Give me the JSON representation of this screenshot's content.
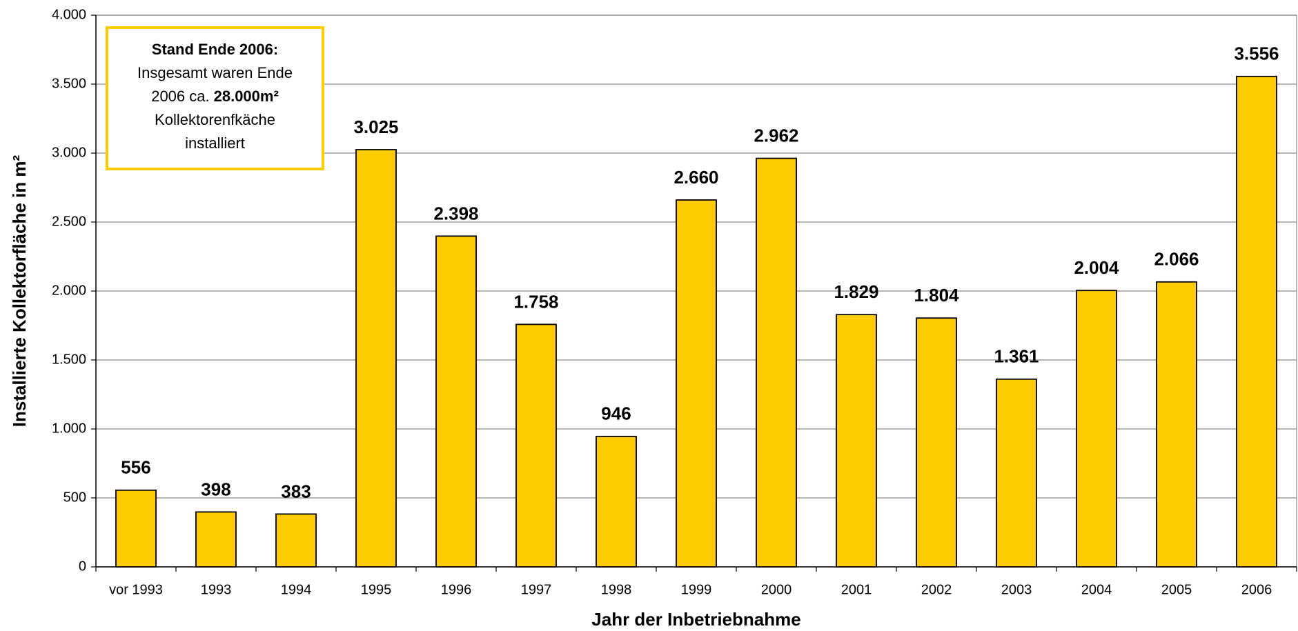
{
  "chart_data": {
    "type": "bar",
    "categories": [
      "vor 1993",
      "1993",
      "1994",
      "1995",
      "1996",
      "1997",
      "1998",
      "1999",
      "2000",
      "2001",
      "2002",
      "2003",
      "2004",
      "2005",
      "2006"
    ],
    "values": [
      556,
      398,
      383,
      3025,
      2398,
      1758,
      946,
      2660,
      2962,
      1829,
      1804,
      1361,
      2004,
      2066,
      3556
    ],
    "value_labels": [
      "556",
      "398",
      "383",
      "3.025",
      "2.398",
      "1.758",
      "946",
      "2.660",
      "2.962",
      "1.829",
      "1.804",
      "1.361",
      "2.004",
      "2.066",
      "3.556"
    ],
    "color": "#ffcc00",
    "ylim": [
      0,
      4000
    ],
    "yticks": [
      0,
      500,
      {
        "value": 1000,
        "label": "1.000"
      },
      {
        "value": 1500,
        "label": "1.500"
      },
      {
        "value": 2000,
        "label": "2.000"
      },
      {
        "value": 2500,
        "label": "2.500"
      },
      {
        "value": 3000,
        "label": "3.000"
      },
      {
        "value": 3500,
        "label": "3.500"
      },
      {
        "value": 4000,
        "label": "4.000"
      }
    ],
    "grid": true,
    "xlabel": "Jahr der Inbetriebnahme",
    "ylabel": "Installierte Kollektorfläche in m²",
    "annotation": {
      "title": "Stand Ende 2006:",
      "lines": [
        [
          "Insgesamt waren Ende"
        ],
        [
          "2006 ca.",
          "28.000m²"
        ],
        [
          "Kollektorenfkäche"
        ],
        [
          "installiert"
        ]
      ]
    }
  }
}
